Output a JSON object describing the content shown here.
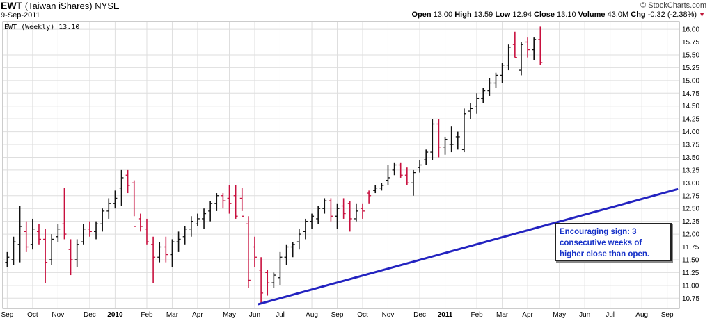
{
  "header": {
    "ticker": "EWT",
    "name": "(Taiwan iShares)",
    "exchange": "NYSE",
    "date": "9-Sep-2011",
    "brand": "© StockCharts.com",
    "open_label": "Open",
    "open_value": "13.00",
    "high_label": "High",
    "high_value": "13.59",
    "low_label": "Low",
    "low_value": "12.94",
    "close_label": "Close",
    "close_value": "13.10",
    "volume_label": "Volume",
    "volume_value": "43.0M",
    "chg_label": "Chg",
    "chg_value": "-0.32 (-2.38%)"
  },
  "colors": {
    "up": "#111111",
    "down": "#c8103e",
    "trendline": "#2323c0",
    "annotation": "#1530c8"
  },
  "chart_data": {
    "type": "ohlc",
    "series_label": "EWT (Weekly) 13.10",
    "ylim": [
      10.55,
      16.15
    ],
    "y_ticks": [
      "10.75",
      "11.00",
      "11.25",
      "11.50",
      "11.75",
      "12.00",
      "12.25",
      "12.50",
      "12.75",
      "13.00",
      "13.25",
      "13.50",
      "13.75",
      "14.00",
      "14.25",
      "14.50",
      "14.75",
      "15.00",
      "15.25",
      "15.50",
      "15.75",
      "16.00"
    ],
    "x_ticks": [
      {
        "label": "Sep",
        "bold": false,
        "week": 0
      },
      {
        "label": "Oct",
        "bold": false,
        "week": 4
      },
      {
        "label": "Nov",
        "bold": false,
        "week": 8
      },
      {
        "label": "Dec",
        "bold": false,
        "week": 13
      },
      {
        "label": "2010",
        "bold": true,
        "week": 17
      },
      {
        "label": "Feb",
        "bold": false,
        "week": 22
      },
      {
        "label": "Mar",
        "bold": false,
        "week": 26
      },
      {
        "label": "Apr",
        "bold": false,
        "week": 30
      },
      {
        "label": "May",
        "bold": false,
        "week": 35
      },
      {
        "label": "Jun",
        "bold": false,
        "week": 39
      },
      {
        "label": "Jul",
        "bold": false,
        "week": 43
      },
      {
        "label": "Aug",
        "bold": false,
        "week": 48
      },
      {
        "label": "Sep",
        "bold": false,
        "week": 52
      },
      {
        "label": "Oct",
        "bold": false,
        "week": 56
      },
      {
        "label": "Nov",
        "bold": false,
        "week": 60
      },
      {
        "label": "Dec",
        "bold": false,
        "week": 65
      },
      {
        "label": "2011",
        "bold": true,
        "week": 69
      },
      {
        "label": "Feb",
        "bold": false,
        "week": 74
      },
      {
        "label": "Mar",
        "bold": false,
        "week": 78
      },
      {
        "label": "Apr",
        "bold": false,
        "week": 82
      },
      {
        "label": "May",
        "bold": false,
        "week": 87
      },
      {
        "label": "Jun",
        "bold": false,
        "week": 91
      },
      {
        "label": "Jul",
        "bold": false,
        "week": 95
      },
      {
        "label": "Aug",
        "bold": false,
        "week": 100
      },
      {
        "label": "Sep",
        "bold": false,
        "week": 104
      }
    ],
    "bars": [
      [
        11.45,
        11.65,
        11.35,
        11.55
      ],
      [
        11.5,
        11.95,
        11.4,
        11.85
      ],
      [
        11.8,
        12.55,
        11.45,
        12.15
      ],
      [
        12.05,
        12.25,
        11.65,
        11.75
      ],
      [
        11.8,
        12.3,
        11.7,
        12.1
      ],
      [
        12.05,
        12.2,
        11.8,
        11.9
      ],
      [
        11.9,
        12.1,
        11.05,
        11.45
      ],
      [
        11.5,
        12.0,
        11.4,
        11.9
      ],
      [
        11.95,
        12.2,
        11.85,
        12.1
      ],
      [
        12.2,
        12.9,
        11.9,
        12.0
      ],
      [
        11.7,
        11.9,
        11.2,
        11.5
      ],
      [
        11.5,
        11.9,
        11.35,
        11.8
      ],
      [
        11.85,
        12.2,
        11.8,
        12.1
      ],
      [
        12.1,
        12.25,
        11.95,
        12.05
      ],
      [
        12.05,
        12.25,
        11.9,
        12.2
      ],
      [
        12.2,
        12.5,
        12.05,
        12.45
      ],
      [
        12.45,
        12.7,
        12.3,
        12.6
      ],
      [
        12.6,
        12.85,
        12.5,
        12.7
      ],
      [
        12.9,
        13.25,
        12.55,
        13.1
      ],
      [
        13.15,
        13.25,
        12.8,
        12.95
      ],
      [
        13.0,
        13.05,
        12.35,
        12.15
      ],
      [
        12.3,
        12.4,
        12.05,
        12.15
      ],
      [
        12.1,
        12.3,
        11.8,
        11.85
      ],
      [
        11.8,
        11.95,
        11.05,
        11.55
      ],
      [
        11.55,
        11.85,
        11.45,
        11.75
      ],
      [
        11.75,
        11.95,
        11.45,
        11.6
      ],
      [
        11.6,
        11.9,
        11.35,
        11.85
      ],
      [
        11.85,
        12.05,
        11.65,
        11.9
      ],
      [
        11.95,
        12.15,
        11.8,
        12.1
      ],
      [
        12.1,
        12.35,
        11.95,
        12.25
      ],
      [
        12.2,
        12.4,
        12.15,
        12.3
      ],
      [
        12.3,
        12.5,
        12.1,
        12.4
      ],
      [
        12.45,
        12.65,
        12.25,
        12.6
      ],
      [
        12.6,
        12.8,
        12.45,
        12.75
      ],
      [
        12.75,
        12.8,
        12.5,
        12.65
      ],
      [
        12.7,
        12.95,
        12.4,
        12.6
      ],
      [
        12.75,
        12.95,
        12.3,
        12.35
      ],
      [
        12.7,
        12.9,
        12.45,
        12.35
      ],
      [
        12.2,
        12.35,
        10.95,
        11.1
      ],
      [
        11.75,
        11.95,
        11.35,
        11.55
      ],
      [
        11.3,
        11.55,
        10.65,
        10.85
      ],
      [
        11.25,
        11.3,
        10.8,
        11.05
      ],
      [
        11.05,
        11.25,
        10.95,
        11.2
      ],
      [
        11.15,
        11.65,
        11.0,
        11.55
      ],
      [
        11.55,
        11.8,
        11.4,
        11.75
      ],
      [
        11.75,
        11.85,
        11.55,
        11.8
      ],
      [
        11.85,
        12.1,
        11.7,
        12.0
      ],
      [
        12.05,
        12.3,
        11.9,
        12.25
      ],
      [
        12.25,
        12.4,
        12.1,
        12.35
      ],
      [
        12.3,
        12.55,
        12.2,
        12.5
      ],
      [
        12.5,
        12.7,
        12.4,
        12.65
      ],
      [
        12.65,
        12.7,
        12.25,
        12.35
      ],
      [
        12.35,
        12.6,
        12.1,
        12.5
      ],
      [
        12.55,
        12.7,
        12.3,
        12.4
      ],
      [
        12.6,
        12.65,
        12.05,
        12.3
      ],
      [
        12.3,
        12.6,
        12.25,
        12.45
      ],
      [
        12.5,
        12.6,
        12.3,
        12.45
      ],
      [
        12.8,
        12.85,
        12.6,
        12.75
      ],
      [
        12.85,
        12.95,
        12.8,
        12.9
      ],
      [
        12.9,
        13.0,
        12.85,
        12.95
      ],
      [
        13.05,
        13.35,
        12.95,
        13.1
      ],
      [
        13.25,
        13.4,
        13.15,
        13.35
      ],
      [
        13.35,
        13.4,
        13.1,
        13.15
      ],
      [
        13.15,
        13.3,
        12.95,
        13.0
      ],
      [
        13.0,
        13.25,
        12.75,
        13.2
      ],
      [
        13.3,
        13.45,
        13.2,
        13.35
      ],
      [
        13.45,
        13.65,
        13.35,
        13.6
      ],
      [
        13.6,
        14.25,
        13.45,
        14.15
      ],
      [
        14.15,
        14.25,
        13.5,
        13.7
      ],
      [
        13.7,
        13.9,
        13.55,
        13.85
      ],
      [
        13.75,
        14.1,
        13.6,
        13.75
      ],
      [
        13.9,
        14.0,
        13.65,
        13.9
      ],
      [
        13.65,
        14.45,
        13.6,
        14.35
      ],
      [
        14.4,
        14.55,
        14.25,
        14.45
      ],
      [
        14.5,
        14.75,
        14.35,
        14.65
      ],
      [
        14.65,
        14.85,
        14.55,
        14.8
      ],
      [
        14.8,
        15.05,
        14.7,
        14.95
      ],
      [
        14.95,
        15.15,
        14.85,
        15.1
      ],
      [
        15.1,
        15.35,
        14.95,
        15.3
      ],
      [
        15.3,
        15.7,
        15.2,
        15.65
      ],
      [
        15.7,
        15.95,
        15.45,
        15.45
      ],
      [
        15.2,
        15.75,
        15.1,
        15.7
      ],
      [
        15.75,
        15.85,
        15.45,
        15.6
      ],
      [
        15.6,
        15.85,
        15.4,
        15.8
      ],
      [
        15.8,
        16.05,
        15.3,
        15.35
      ]
    ],
    "trendline": {
      "from": {
        "week": 39.5,
        "price": 10.63
      },
      "to": {
        "week": 105.7,
        "price": 12.88
      }
    },
    "annotation": "Encouraging sign: 3 consecutive weeks of higher close than open."
  }
}
